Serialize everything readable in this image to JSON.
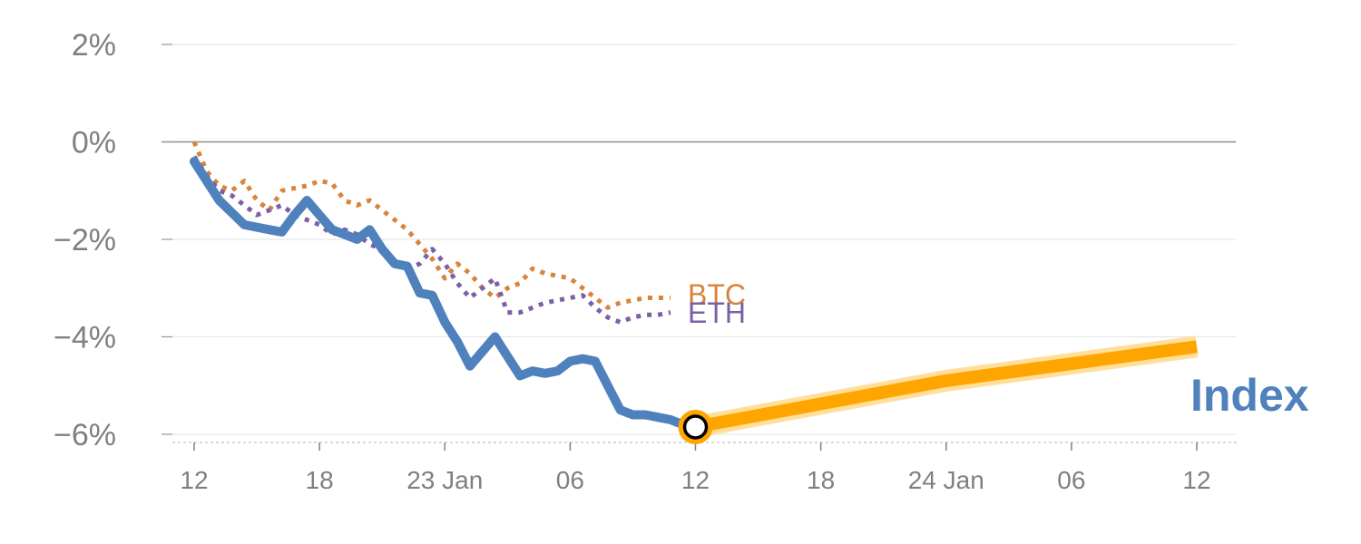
{
  "chart_data": {
    "type": "line",
    "title": "",
    "xlabel": "",
    "ylabel": "",
    "ylim": [
      -6.2,
      2.2
    ],
    "y_ticks": [
      {
        "value": 2,
        "label": "2%"
      },
      {
        "value": 0,
        "label": "0%"
      },
      {
        "value": -2,
        "label": "−2%"
      },
      {
        "value": -4,
        "label": "−4%"
      },
      {
        "value": -6,
        "label": "−6%"
      }
    ],
    "x_range": [
      0,
      81
    ],
    "x_ticks": [
      {
        "x": 0,
        "label": "12"
      },
      {
        "x": 10,
        "label": "18"
      },
      {
        "x": 20,
        "label": "23 Jan"
      },
      {
        "x": 30,
        "label": "06"
      },
      {
        "x": 40,
        "label": "12"
      },
      {
        "x": 50,
        "label": "18"
      },
      {
        "x": 60,
        "label": "24 Jan"
      },
      {
        "x": 70,
        "label": "06"
      },
      {
        "x": 80,
        "label": "12"
      }
    ],
    "series": [
      {
        "name": "BTC",
        "label": "BTC",
        "color": "#d9843b",
        "style": "dotted",
        "x": [
          0,
          1,
          2,
          3,
          4,
          5,
          6,
          7,
          8,
          9,
          10,
          11,
          12,
          13,
          14,
          15,
          16,
          17,
          18,
          19,
          20,
          21,
          22,
          23,
          24,
          25,
          26,
          27,
          28,
          29,
          30,
          31,
          32,
          33,
          34,
          35,
          36,
          37,
          38
        ],
        "values": [
          0.0,
          -0.6,
          -0.9,
          -1.0,
          -0.8,
          -1.2,
          -1.4,
          -1.0,
          -0.95,
          -0.9,
          -0.8,
          -0.85,
          -1.2,
          -1.3,
          -1.2,
          -1.4,
          -1.6,
          -1.8,
          -2.1,
          -2.4,
          -2.8,
          -2.5,
          -2.7,
          -3.0,
          -3.2,
          -3.0,
          -2.9,
          -2.6,
          -2.7,
          -2.75,
          -2.8,
          -3.0,
          -3.2,
          -3.4,
          -3.3,
          -3.25,
          -3.2,
          -3.2,
          -3.2
        ]
      },
      {
        "name": "ETH",
        "label": "ETH",
        "color": "#7d5fa6",
        "style": "dotted",
        "x": [
          0,
          1,
          2,
          3,
          4,
          5,
          6,
          7,
          8,
          9,
          10,
          11,
          12,
          13,
          14,
          15,
          16,
          17,
          18,
          19,
          20,
          21,
          22,
          23,
          24,
          25,
          26,
          27,
          28,
          29,
          30,
          31,
          32,
          33,
          34,
          35,
          36,
          37,
          38
        ],
        "values": [
          -0.3,
          -0.7,
          -1.0,
          -1.1,
          -1.3,
          -1.5,
          -1.4,
          -1.3,
          -1.5,
          -1.6,
          -1.7,
          -1.9,
          -1.8,
          -1.9,
          -2.1,
          -2.2,
          -2.5,
          -2.6,
          -2.5,
          -2.2,
          -2.5,
          -2.9,
          -3.2,
          -3.0,
          -2.8,
          -3.5,
          -3.5,
          -3.4,
          -3.3,
          -3.25,
          -3.2,
          -3.15,
          -3.4,
          -3.6,
          -3.7,
          -3.6,
          -3.55,
          -3.55,
          -3.5
        ]
      },
      {
        "name": "Index",
        "label": "Index",
        "color": "#4f81bd",
        "style": "solid",
        "x": [
          0,
          1,
          2,
          3,
          4,
          5,
          6,
          7,
          8,
          9,
          10,
          11,
          12,
          13,
          14,
          15,
          16,
          17,
          18,
          19,
          20,
          21,
          22,
          23,
          24,
          25,
          26,
          27,
          28,
          29,
          30,
          31,
          32,
          33,
          34,
          35,
          36,
          37,
          38,
          39,
          40
        ],
        "values": [
          -0.4,
          -0.8,
          -1.2,
          -1.45,
          -1.7,
          -1.75,
          -1.8,
          -1.85,
          -1.5,
          -1.2,
          -1.5,
          -1.8,
          -1.9,
          -2.0,
          -1.8,
          -2.2,
          -2.5,
          -2.55,
          -3.1,
          -3.15,
          -3.7,
          -4.1,
          -4.6,
          -4.3,
          -4.0,
          -4.4,
          -4.8,
          -4.7,
          -4.75,
          -4.7,
          -4.5,
          -4.45,
          -4.5,
          -5.0,
          -5.5,
          -5.6,
          -5.6,
          -5.65,
          -5.7,
          -5.8,
          -5.85
        ]
      },
      {
        "name": "Index forecast",
        "label": "",
        "color": "#ffa500",
        "style": "solid",
        "x": [
          40,
          60,
          80
        ],
        "values": [
          -5.85,
          -4.9,
          -4.2
        ]
      }
    ],
    "highlight_point": {
      "series": "Index",
      "x": 40,
      "value": -5.85
    }
  }
}
